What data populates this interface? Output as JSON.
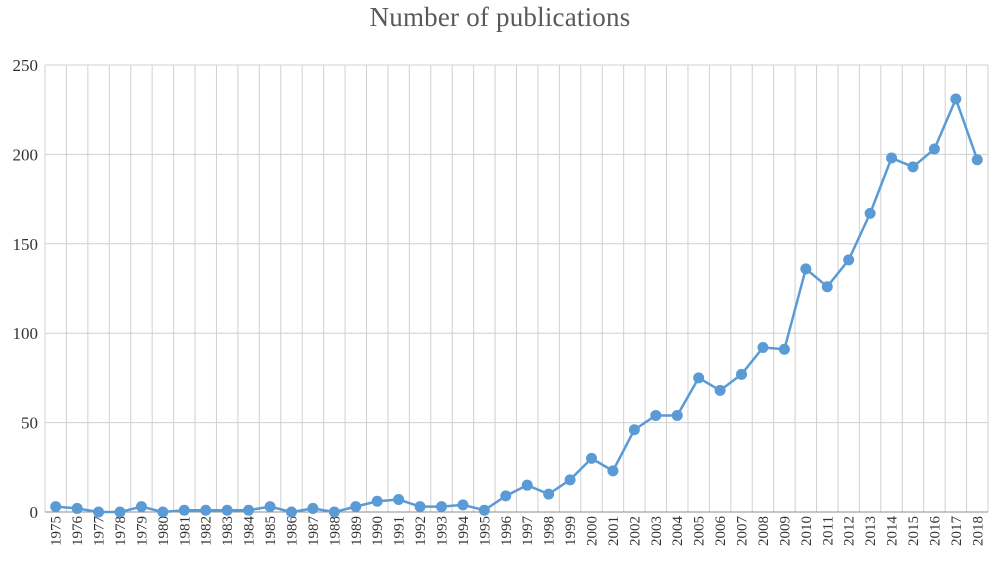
{
  "chart_data": {
    "type": "line",
    "title": "Number of publications",
    "xlabel": "",
    "ylabel": "",
    "ylim": [
      0,
      250
    ],
    "yticks": [
      "0",
      "50",
      "100",
      "150",
      "200",
      "250"
    ],
    "grid": true,
    "legend": "none",
    "colors": {
      "series": "#5B9BD5",
      "grid": "#d0d0d0",
      "axis": "#8c8c8c",
      "text": "#333333"
    },
    "categories": [
      "1975",
      "1976",
      "1977",
      "1978",
      "1979",
      "1980",
      "1981",
      "1982",
      "1983",
      "1984",
      "1985",
      "1986",
      "1987",
      "1988",
      "1989",
      "1990",
      "1991",
      "1992",
      "1993",
      "1994",
      "1995",
      "1996",
      "1997",
      "1998",
      "1999",
      "2000",
      "2001",
      "2002",
      "2003",
      "2004",
      "2005",
      "2006",
      "2007",
      "2008",
      "2009",
      "2010",
      "2011",
      "2012",
      "2013",
      "2014",
      "2015",
      "2016",
      "2017",
      "2018"
    ],
    "series": [
      {
        "values": [
          3,
          2,
          0,
          0,
          3,
          0,
          1,
          1,
          1,
          1,
          3,
          0,
          2,
          0,
          3,
          6,
          7,
          3,
          3,
          4,
          1,
          9,
          15,
          10,
          18,
          30,
          23,
          46,
          54,
          54,
          75,
          68,
          77,
          92,
          91,
          136,
          126,
          141,
          167,
          198,
          193,
          203,
          231,
          197
        ]
      }
    ]
  }
}
